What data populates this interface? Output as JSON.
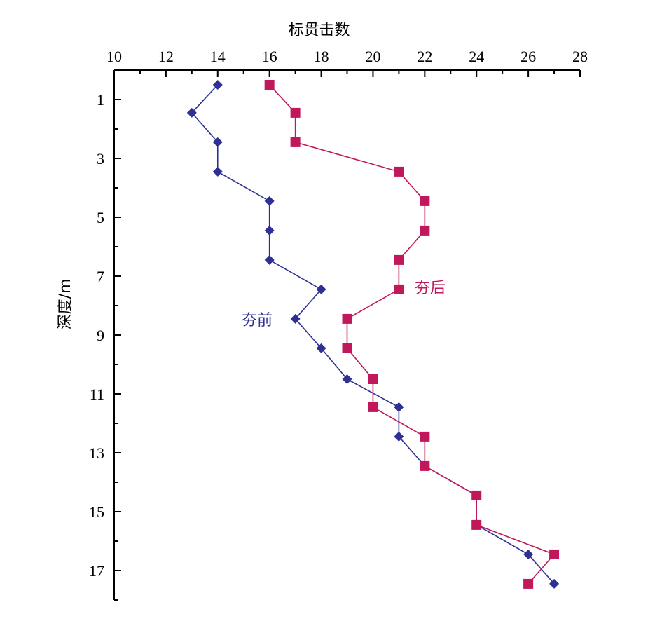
{
  "chart_data": {
    "type": "line",
    "xlabel": "标贯击数",
    "ylabel": "深度/m",
    "xlim": [
      10,
      28
    ],
    "ylim": [
      0,
      18
    ],
    "y_inverted": true,
    "x_axis_position": "top",
    "x_ticks": [
      10,
      12,
      14,
      16,
      18,
      20,
      22,
      24,
      26,
      28
    ],
    "y_ticks": [
      1,
      3,
      5,
      7,
      9,
      11,
      13,
      15,
      17
    ],
    "grid": false,
    "series": [
      {
        "name": "夯前",
        "color": "#2e3192",
        "marker": "diamond",
        "points": [
          {
            "x": 14,
            "y": 0.5
          },
          {
            "x": 13,
            "y": 1.45
          },
          {
            "x": 14,
            "y": 2.45
          },
          {
            "x": 14,
            "y": 3.45
          },
          {
            "x": 16,
            "y": 4.45
          },
          {
            "x": 16,
            "y": 5.45
          },
          {
            "x": 16,
            "y": 6.45
          },
          {
            "x": 18,
            "y": 7.45
          },
          {
            "x": 17,
            "y": 8.45
          },
          {
            "x": 18,
            "y": 9.45
          },
          {
            "x": 19,
            "y": 10.5
          },
          {
            "x": 21,
            "y": 11.45
          },
          {
            "x": 21,
            "y": 12.45
          },
          {
            "x": 22,
            "y": 13.45
          },
          {
            "x": 24,
            "y": 14.45
          },
          {
            "x": 24,
            "y": 15.45
          },
          {
            "x": 26,
            "y": 16.45
          },
          {
            "x": 27,
            "y": 17.45
          }
        ]
      },
      {
        "name": "夯后",
        "color": "#c0185a",
        "marker": "square",
        "points": [
          {
            "x": 16,
            "y": 0.5
          },
          {
            "x": 17,
            "y": 1.45
          },
          {
            "x": 17,
            "y": 2.45
          },
          {
            "x": 21,
            "y": 3.45
          },
          {
            "x": 22,
            "y": 4.45
          },
          {
            "x": 22,
            "y": 5.45
          },
          {
            "x": 21,
            "y": 6.45
          },
          {
            "x": 21,
            "y": 7.45
          },
          {
            "x": 19,
            "y": 8.45
          },
          {
            "x": 19,
            "y": 9.45
          },
          {
            "x": 20,
            "y": 10.5
          },
          {
            "x": 20,
            "y": 11.45
          },
          {
            "x": 22,
            "y": 12.45
          },
          {
            "x": 22,
            "y": 13.45
          },
          {
            "x": 24,
            "y": 14.45
          },
          {
            "x": 24,
            "y": 15.45
          },
          {
            "x": 27,
            "y": 16.45
          },
          {
            "x": 26,
            "y": 17.45
          }
        ]
      }
    ]
  }
}
